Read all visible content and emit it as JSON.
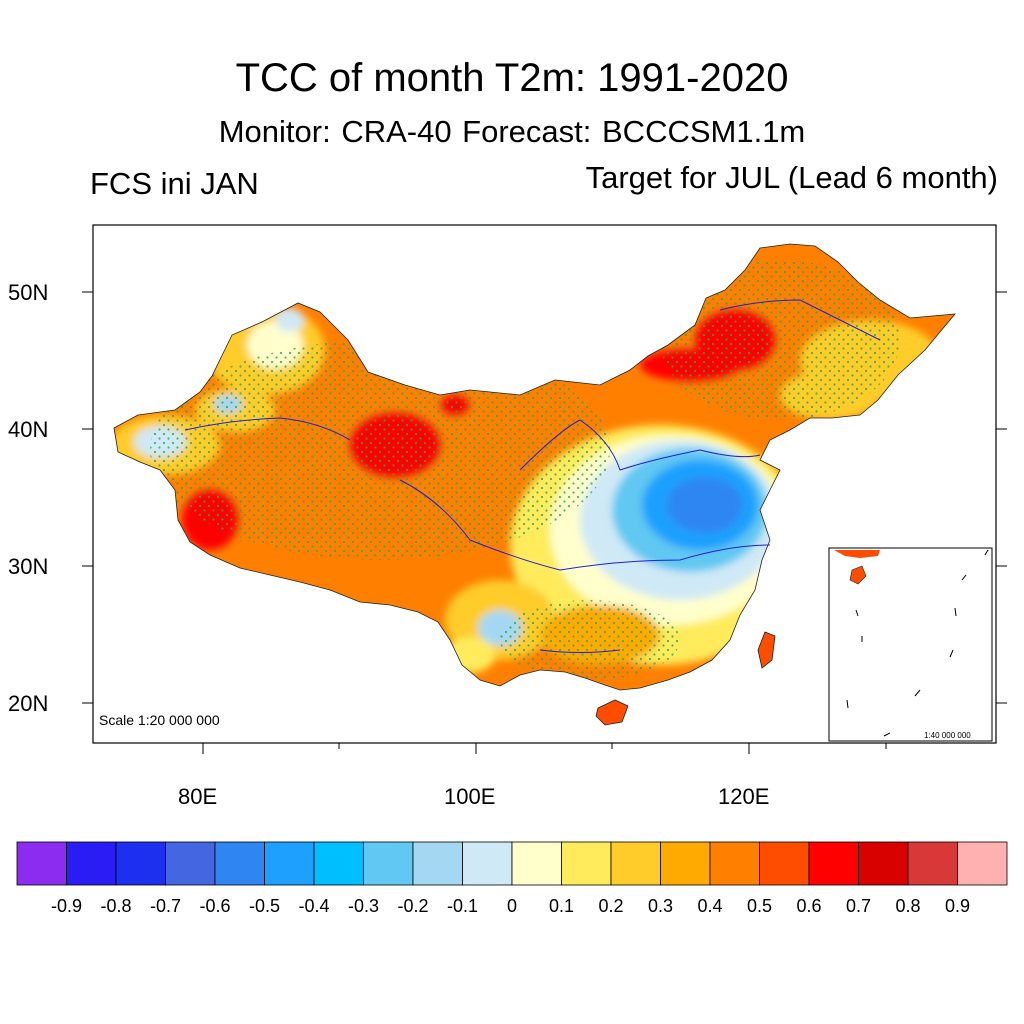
{
  "header": {
    "title": "TCC of month T2m: 1991-2020",
    "subtitle": "Monitor: CRA-40   Forecast: BCCCSM1.1m",
    "left_label": "FCS ini JAN",
    "right_label": "Target for JUL (Lead 6 month)"
  },
  "map": {
    "lat_labels": [
      "50N",
      "40N",
      "30N",
      "20N"
    ],
    "lon_labels": [
      "80E",
      "100E",
      "120E"
    ],
    "scale_text": "Scale 1:20 000 000",
    "inset_scale_text": "1:40 000 000",
    "colors": {
      "border": "#000000",
      "rivers": "#1f1fd6",
      "stipple": "#2aa84a"
    }
  },
  "colorbar": {
    "colors": [
      "#8b2cf0",
      "#2a1cf5",
      "#1d30f0",
      "#4466e0",
      "#2f86f2",
      "#1ea0ff",
      "#00bfff",
      "#60c8f2",
      "#a4d8f2",
      "#cfe9f6",
      "#ffffcc",
      "#ffeb5c",
      "#ffcc29",
      "#ffaa00",
      "#ff8000",
      "#ff4d00",
      "#ff0000",
      "#d90000",
      "#d93838",
      "#ffb0b0"
    ],
    "labels": [
      "-0.9",
      "-0.8",
      "-0.7",
      "-0.6",
      "-0.5",
      "-0.4",
      "-0.3",
      "-0.2",
      "-0.1",
      "0",
      "0.1",
      "0.2",
      "0.3",
      "0.4",
      "0.5",
      "0.6",
      "0.7",
      "0.8",
      "0.9"
    ]
  }
}
